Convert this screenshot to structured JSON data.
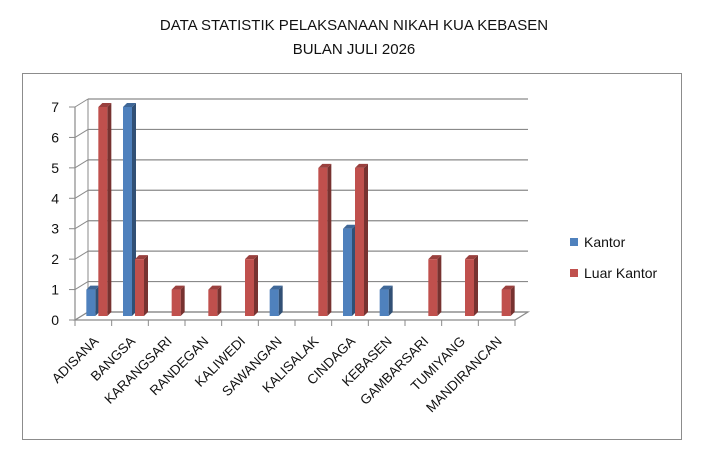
{
  "chart_data": {
    "type": "bar",
    "title": "DATA STATISTIK PELAKSANAAN NIKAH KUA KEBASEN",
    "subtitle": "BULAN JULI 2026",
    "categories": [
      "ADISANA",
      "BANGSA",
      "KARANGSARI",
      "RANDEGAN",
      "KALIWEDI",
      "SAWANGAN",
      "KALISALAK",
      "CINDAGA",
      "KEBASEN",
      "GAMBARSARI",
      "TUMIYANG",
      "MANDIRANCAN"
    ],
    "series": [
      {
        "name": "Kantor",
        "color": "#4f81bd",
        "values": [
          1,
          7,
          0,
          0,
          0,
          1,
          0,
          3,
          1,
          0,
          0,
          0
        ]
      },
      {
        "name": "Luar Kantor",
        "color": "#c0504d",
        "values": [
          7,
          2,
          1,
          1,
          2,
          0,
          5,
          5,
          0,
          2,
          2,
          1
        ]
      }
    ],
    "ylim": [
      0,
      7
    ],
    "yticks": [
      0,
      1,
      2,
      3,
      4,
      5,
      6,
      7
    ],
    "grid": true,
    "legend_position": "right",
    "xlabel": "",
    "ylabel": ""
  }
}
